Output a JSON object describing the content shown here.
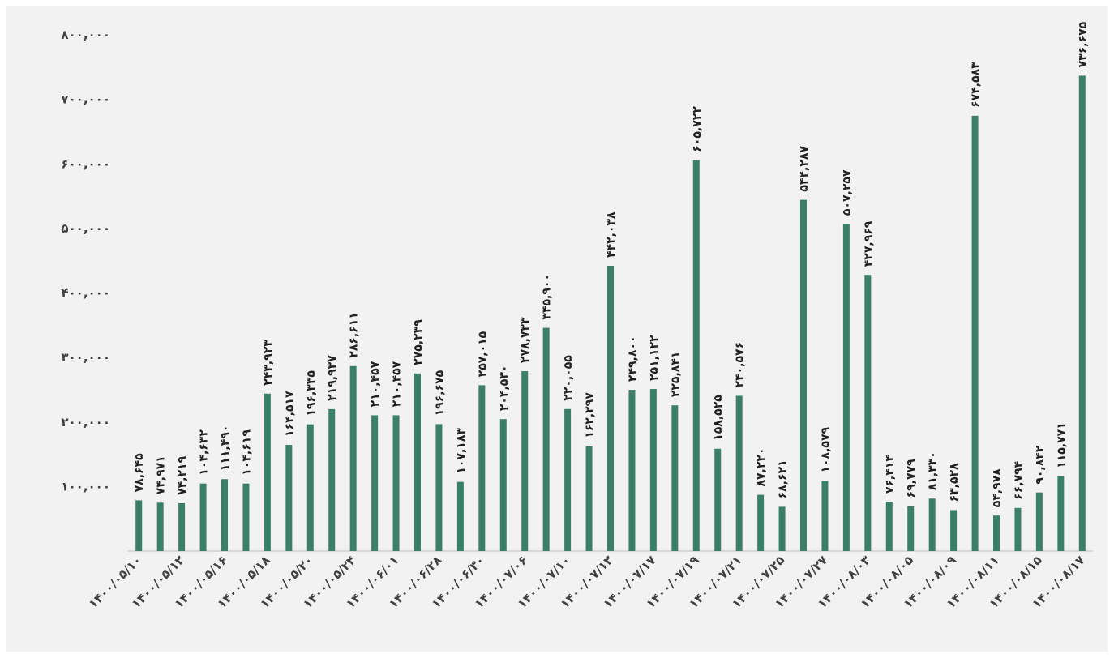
{
  "chart_data": {
    "type": "bar",
    "title": "",
    "xlabel": "",
    "ylabel": "",
    "ylim": [
      0,
      800000
    ],
    "grid": false,
    "legend": "none",
    "bar_color": "#3a7f68",
    "y_ticks": [
      {
        "value": 100000,
        "label": "۱۰۰,۰۰۰"
      },
      {
        "value": 200000,
        "label": "۲۰۰,۰۰۰"
      },
      {
        "value": 300000,
        "label": "۳۰۰,۰۰۰"
      },
      {
        "value": 400000,
        "label": "۴۰۰,۰۰۰"
      },
      {
        "value": 500000,
        "label": "۵۰۰,۰۰۰"
      },
      {
        "value": 600000,
        "label": "۶۰۰,۰۰۰"
      },
      {
        "value": 700000,
        "label": "۷۰۰,۰۰۰"
      },
      {
        "value": 800000,
        "label": "۸۰۰,۰۰۰"
      }
    ],
    "x_tick_labels": [
      {
        "index": 0,
        "label": "۱۴۰۰/۰۵/۱۰"
      },
      {
        "index": 2,
        "label": "۱۴۰۰/۰۵/۱۲"
      },
      {
        "index": 4,
        "label": "۱۴۰۰/۰۵/۱۶"
      },
      {
        "index": 6,
        "label": "۱۴۰۰/۰۵/۱۸"
      },
      {
        "index": 8,
        "label": "۱۴۰۰/۰۵/۲۰"
      },
      {
        "index": 10,
        "label": "۱۴۰۰/۰۵/۲۴"
      },
      {
        "index": 12,
        "label": "۱۴۰۰/۰۶/۰۱"
      },
      {
        "index": 14,
        "label": "۱۴۰۰/۰۶/۲۸"
      },
      {
        "index": 16,
        "label": "۱۴۰۰/۰۶/۳۰"
      },
      {
        "index": 18,
        "label": "۱۴۰۰/۰۷/۰۶"
      },
      {
        "index": 20,
        "label": "۱۴۰۰/۰۷/۱۰"
      },
      {
        "index": 22,
        "label": "۱۴۰۰/۰۷/۱۲"
      },
      {
        "index": 24,
        "label": "۱۴۰۰/۰۷/۱۷"
      },
      {
        "index": 26,
        "label": "۱۴۰۰/۰۷/۱۹"
      },
      {
        "index": 28,
        "label": "۱۴۰۰/۰۷/۲۱"
      },
      {
        "index": 30,
        "label": "۱۴۰۰/۰۷/۲۵"
      },
      {
        "index": 32,
        "label": "۱۴۰۰/۰۷/۲۷"
      },
      {
        "index": 34,
        "label": "۱۴۰۰/۰۸/۰۳"
      },
      {
        "index": 36,
        "label": "۱۴۰۰/۰۸/۰۵"
      },
      {
        "index": 38,
        "label": "۱۴۰۰/۰۸/۰۹"
      },
      {
        "index": 40,
        "label": "۱۴۰۰/۰۸/۱۱"
      },
      {
        "index": 42,
        "label": "۱۴۰۰/۰۸/۱۵"
      },
      {
        "index": 44,
        "label": "۱۴۰۰/۰۸/۱۷"
      }
    ],
    "values": [
      78645,
      74971,
      74219,
      104632,
      111490,
      104619,
      243923,
      164517,
      196335,
      219937,
      286611,
      210457,
      210457,
      275239,
      196675,
      107183,
      257015,
      204530,
      278733,
      345900,
      220055,
      162297,
      442038,
      249800,
      251122,
      225841,
      605722,
      158525,
      240576,
      87220,
      68621,
      544287,
      108579,
      507257,
      427969,
      76414,
      69779,
      81330,
      63528,
      674583,
      54978,
      66794,
      90842,
      115771,
      736675
    ],
    "value_labels": [
      "۷۸,۶۴۵",
      "۷۴,۹۷۱",
      "۷۴,۲۱۹",
      "۱۰۴,۶۳۲",
      "۱۱۱,۴۹۰",
      "۱۰۴,۶۱۹",
      "۲۴۳,۹۲۳",
      "۱۶۴,۵۱۷",
      "۱۹۶,۳۳۵",
      "۲۱۹,۹۳۷",
      "۲۸۶,۶۱۱",
      "۲۱۰,۴۵۷",
      "۲۱۰,۴۵۷",
      "۲۷۵,۲۳۹",
      "۱۹۶,۶۷۵",
      "۱۰۷,۱۸۳",
      "۲۵۷,۰۱۵",
      "۲۰۴,۵۳۰",
      "۲۷۸,۷۳۳",
      "۳۴۵,۹۰۰",
      "۲۲۰,۰۵۵",
      "۱۶۲,۲۹۷",
      "۴۴۲,۰۳۸",
      "۲۴۹,۸۰۰",
      "۲۵۱,۱۲۲",
      "۲۲۵,۸۴۱",
      "۶۰۵,۷۲۲",
      "۱۵۸,۵۲۵",
      "۲۴۰,۵۷۶",
      "۸۷,۲۲۰",
      "۶۸,۶۲۱",
      "۵۴۴,۲۸۷",
      "۱۰۸,۵۷۹",
      "۵۰۷,۲۵۷",
      "۴۲۷,۹۶۹",
      "۷۶,۴۱۴",
      "۶۹,۷۷۹",
      "۸۱,۳۳۰",
      "۶۳,۵۲۸",
      "۶۷۴,۵۸۳",
      "۵۴,۹۷۸",
      "۶۶,۷۹۴",
      "۹۰,۸۴۲",
      "۱۱۵,۷۷۱",
      "۷۳۶,۶۷۵"
    ]
  }
}
